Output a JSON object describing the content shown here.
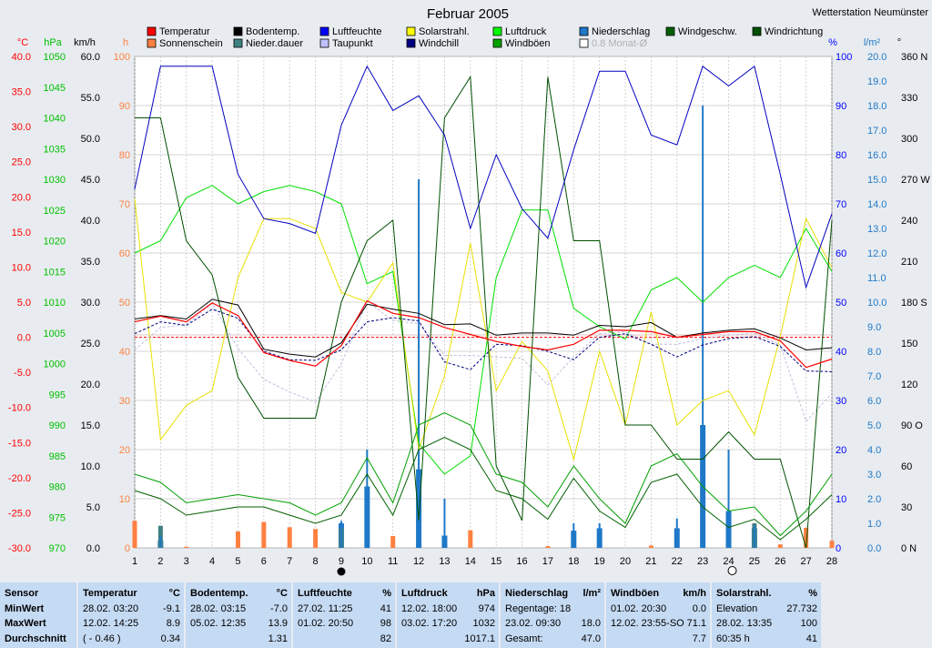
{
  "title": "Februar 2005",
  "station": "Wetterstation Neumünster",
  "legend": [
    {
      "label": "Temperatur",
      "color": "#ff0000"
    },
    {
      "label": "Sonnenschein",
      "color": "#ff8040"
    },
    {
      "label": "Bodentemp.",
      "color": "#000000"
    },
    {
      "label": "Nieder.dauer",
      "color": "#408080"
    },
    {
      "label": "Luftfeuchte",
      "color": "#0000ff"
    },
    {
      "label": "Taupunkt",
      "color": "#c0c0ff"
    },
    {
      "label": "Solarstrahl.",
      "color": "#ffff00"
    },
    {
      "label": "Windchill",
      "color": "#000080"
    },
    {
      "label": "Luftdruck",
      "color": "#00ff00"
    },
    {
      "label": "Windböen",
      "color": "#00a000"
    },
    {
      "label": "Niederschlag",
      "color": "#1e78c8"
    },
    {
      "label": "0.8 Monat-Ø",
      "color": "#ffffff"
    },
    {
      "label": "Windgeschw.",
      "color": "#006000"
    },
    {
      "label": "Windrichtung",
      "color": "#005000"
    }
  ],
  "axes": {
    "temp": {
      "unit": "°C",
      "ticks": [
        "40.0",
        "35.0",
        "30.0",
        "25.0",
        "20.0",
        "15.0",
        "10.0",
        "5.0",
        "0.0",
        "-5.0",
        "-10.0",
        "-15.0",
        "-20.0",
        "-25.0",
        "-30.0"
      ],
      "color": "#ff0000"
    },
    "pressure": {
      "unit": "hPa",
      "ticks": [
        "1050",
        "1045",
        "1040",
        "1035",
        "1030",
        "1025",
        "1020",
        "1015",
        "1010",
        "1005",
        "1000",
        "995",
        "990",
        "985",
        "980",
        "975",
        "970"
      ],
      "color": "#00c000"
    },
    "wind": {
      "unit": "km/h",
      "ticks": [
        "60.0",
        "55.0",
        "50.0",
        "45.0",
        "40.0",
        "35.0",
        "30.0",
        "25.0",
        "20.0",
        "15.0",
        "10.0",
        "5.0",
        "0.0"
      ],
      "color": "#000000"
    },
    "sun": {
      "unit": "h",
      "ticks": [
        "100",
        "90",
        "80",
        "70",
        "60",
        "50",
        "40",
        "30",
        "20",
        "10",
        "0"
      ],
      "color": "#ff8040"
    },
    "humidity": {
      "unit": "%",
      "ticks": [
        "100",
        "90",
        "80",
        "70",
        "60",
        "50",
        "40",
        "30",
        "20",
        "10",
        "0"
      ],
      "color": "#0000ff"
    },
    "precip": {
      "unit": "l/m²",
      "ticks": [
        "20.0",
        "19.0",
        "18.0",
        "17.0",
        "16.0",
        "15.0",
        "14.0",
        "13.0",
        "12.0",
        "11.0",
        "10.0",
        "9.0",
        "8.0",
        "7.0",
        "6.0",
        "5.0",
        "4.0",
        "3.0",
        "2.0",
        "1.0",
        "0.0"
      ],
      "color": "#1e78c8"
    },
    "direction": {
      "unit": "°",
      "ticks": [
        "360 N",
        "330",
        "300",
        "270 W",
        "240",
        "210",
        "180 S",
        "150",
        "120",
        "90 O",
        "60",
        "30",
        "0 N"
      ],
      "color": "#000000"
    },
    "x_ticks": [
      "1",
      "2",
      "3",
      "4",
      "5",
      "6",
      "7",
      "8",
      "9",
      "10",
      "11",
      "12",
      "13",
      "14",
      "15",
      "16",
      "17",
      "18",
      "19",
      "20",
      "21",
      "22",
      "23",
      "24",
      "25",
      "26",
      "27",
      "28"
    ]
  },
  "chart_data": {
    "type": "line",
    "x": [
      1,
      2,
      3,
      4,
      5,
      6,
      7,
      8,
      9,
      10,
      11,
      12,
      13,
      14,
      15,
      16,
      17,
      18,
      19,
      20,
      21,
      22,
      23,
      24,
      25,
      26,
      27,
      28
    ],
    "moon_days": [
      9,
      24
    ],
    "series": [
      {
        "name": "Temperatur",
        "unit": "°C",
        "color": "#ff0000",
        "values": [
          2.2,
          3.0,
          2.2,
          4.9,
          3.1,
          -2.2,
          -3.3,
          -4.1,
          -1.2,
          5.2,
          3.4,
          2.8,
          1.4,
          0.4,
          -0.6,
          -1.3,
          -1.8,
          -1.0,
          1.0,
          1.0,
          0.8,
          0.0,
          0.4,
          0.8,
          0.8,
          -0.5,
          -4.3,
          -3.1
        ]
      },
      {
        "name": "Bodentemp.",
        "unit": "°C",
        "color": "#000000",
        "values": [
          2.6,
          3.1,
          2.6,
          5.4,
          4.6,
          -1.7,
          -2.4,
          -2.8,
          -0.8,
          4.7,
          4.0,
          3.4,
          1.8,
          1.9,
          0.3,
          0.6,
          0.6,
          0.3,
          1.7,
          1.5,
          2.1,
          0.0,
          0.6,
          1.0,
          1.2,
          -0.1,
          -1.8,
          -1.5
        ]
      },
      {
        "name": "Windchill",
        "unit": "°C",
        "color": "#000080",
        "values": [
          0.5,
          2.2,
          1.7,
          4.0,
          2.7,
          -2.0,
          -3.2,
          -3.3,
          -1.8,
          2.2,
          2.8,
          2.3,
          -3.5,
          -4.6,
          -1.0,
          -1.2,
          -2.0,
          -3.2,
          0.0,
          0.5,
          -1.0,
          -2.8,
          -1.1,
          -0.2,
          0.1,
          -1.3,
          -4.8,
          -4.9
        ]
      },
      {
        "name": "Taupunkt",
        "unit": "°C",
        "color": "#c0c0ff",
        "values": [
          -1.8,
          1.4,
          1.8,
          4.8,
          -1.6,
          -6.0,
          -7.8,
          -9.2,
          -3.8,
          5.1,
          2.4,
          1.9,
          -2.6,
          -2.6,
          -2.8,
          -3.0,
          -6.8,
          -2.8,
          0.5,
          0.8,
          -1.0,
          -1.0,
          -0.2,
          0.3,
          0.6,
          -1.1,
          -12.0,
          -8.0
        ]
      },
      {
        "name": "Luftfeuchte",
        "unit": "%",
        "color": "#0000ff",
        "values": [
          73,
          98,
          98,
          98,
          76,
          67,
          66,
          64,
          86,
          98,
          89,
          92,
          84,
          65,
          80,
          69,
          63,
          81,
          97,
          97,
          84,
          82,
          98,
          94,
          98,
          76,
          53,
          68
        ]
      },
      {
        "name": "Luftdruck",
        "unit": "hPa",
        "color": "#00ff00",
        "values": [
          1018,
          1020,
          1027,
          1029,
          1026,
          1028,
          1029,
          1028,
          1026,
          1013,
          1015,
          987,
          982,
          985,
          1014,
          1025,
          1025,
          1009,
          1006,
          1004,
          1012,
          1014,
          1010,
          1014,
          1016,
          1014,
          1022,
          1015
        ]
      },
      {
        "name": "Solarstrahl.",
        "unit": "%",
        "color": "#ffff00",
        "values": [
          71,
          22,
          29,
          32,
          55,
          67,
          67,
          65,
          52,
          50,
          58,
          20,
          35,
          62,
          32,
          42,
          36,
          18,
          40,
          25,
          48,
          25,
          30,
          32,
          23,
          43,
          67,
          57
        ]
      },
      {
        "name": "Windböen",
        "unit": "km/h",
        "color": "#00a000",
        "values": [
          9.0,
          8.0,
          5.5,
          6.0,
          6.5,
          6.0,
          5.5,
          4.0,
          5.5,
          11.0,
          5.5,
          15.0,
          16.5,
          15.0,
          9.0,
          8.0,
          5.0,
          10.0,
          6.0,
          3.0,
          10.0,
          11.5,
          7.5,
          4.5,
          5.0,
          1.5,
          4.5,
          9.0
        ]
      },
      {
        "name": "Windgeschw.",
        "unit": "km/h",
        "color": "#006000",
        "values": [
          7.0,
          6.0,
          4.0,
          4.5,
          5.0,
          5.0,
          4.0,
          3.0,
          4.0,
          9.0,
          4.0,
          12.0,
          13.5,
          12.0,
          7.0,
          6.0,
          3.5,
          8.5,
          4.5,
          2.5,
          8.0,
          9.0,
          5.0,
          2.5,
          3.5,
          1.0,
          3.5,
          6.5
        ]
      },
      {
        "name": "Windrichtung",
        "unit": "°",
        "color": "#005000",
        "values": [
          315,
          315,
          225,
          200,
          125,
          95,
          95,
          95,
          180,
          225,
          240,
          20,
          315,
          345,
          60,
          20,
          345,
          225,
          225,
          90,
          90,
          65,
          65,
          85,
          65,
          65,
          0,
          240
        ]
      },
      {
        "name": "Sonnenschein",
        "unit": "h",
        "color": "#ff8040",
        "values": [
          4.6,
          0,
          0.2,
          0,
          2.8,
          4.4,
          3.5,
          3.2,
          2.1,
          0,
          2.0,
          0,
          0,
          3.0,
          0,
          0,
          0.3,
          0,
          0,
          0,
          0.4,
          0,
          0,
          0,
          0,
          0.6,
          3.4,
          1.2
        ]
      },
      {
        "name": "Nieder.dauer",
        "unit": "h",
        "color": "#408080",
        "values": [
          0,
          0.9,
          0,
          0,
          0,
          0,
          0,
          0,
          0.8,
          0,
          0,
          0,
          0,
          0,
          0,
          0,
          0,
          0,
          0,
          0,
          0,
          0,
          0,
          0,
          1.0,
          0,
          0,
          0
        ]
      },
      {
        "name": "Niederschlag",
        "unit": "l/m²",
        "color": "#1e78c8",
        "values": [
          0,
          0.3,
          0,
          0,
          0,
          0,
          0,
          0,
          1.0,
          2.5,
          0,
          3.2,
          0.5,
          0,
          0,
          0,
          0,
          0.7,
          0.8,
          0,
          0,
          0.8,
          5.0,
          1.5,
          0.8,
          0,
          0,
          0
        ]
      }
    ],
    "precip_spikes": [
      {
        "day": 2,
        "max": 0.5
      },
      {
        "day": 9,
        "max": 1.1
      },
      {
        "day": 10,
        "max": 4.0
      },
      {
        "day": 12,
        "max": 15.0
      },
      {
        "day": 13,
        "max": 2.0
      },
      {
        "day": 18,
        "max": 1.0
      },
      {
        "day": 19,
        "max": 1.0
      },
      {
        "day": 22,
        "max": 1.2
      },
      {
        "day": 23,
        "max": 18.0
      },
      {
        "day": 24,
        "max": 4.0
      },
      {
        "day": 25,
        "max": 0.9
      }
    ],
    "month_avg_temp": 0.34,
    "month_avg_temp_label": "0.8 Monat-Ø"
  },
  "table": {
    "sensor": {
      "head": "Sensor",
      "rows": [
        "MinWert",
        "MaxWert",
        "Durchschnitt"
      ]
    },
    "columns": [
      {
        "head": "Temperatur",
        "unit": "°C",
        "rows": [
          [
            "28.02.  03:20",
            "-9.1"
          ],
          [
            "12.02.  14:25",
            "8.9"
          ],
          [
            "( - 0.46 )",
            "0.34"
          ]
        ]
      },
      {
        "head": "Bodentemp.",
        "unit": "°C",
        "rows": [
          [
            "28.02.  03:15",
            "-7.0"
          ],
          [
            "05.02.  12:35",
            "13.9"
          ],
          [
            "",
            "1.31"
          ]
        ]
      },
      {
        "head": "Luftfeuchte",
        "unit": "%",
        "rows": [
          [
            "27.02.  11:25",
            "41"
          ],
          [
            "01.02.  20:50",
            "98"
          ],
          [
            "",
            "82"
          ]
        ]
      },
      {
        "head": "Luftdruck",
        "unit": "hPa",
        "rows": [
          [
            "12.02.  18:00",
            "974"
          ],
          [
            "03.02.  17:20",
            "1032"
          ],
          [
            "",
            "1017.1"
          ]
        ]
      },
      {
        "head": "Niederschlag",
        "unit": "l/m²",
        "rows": [
          [
            "Regentage: 18",
            ""
          ],
          [
            "23.02.  09:30",
            "18.0"
          ],
          [
            "Gesamt:",
            "47.0"
          ]
        ]
      },
      {
        "head": "Windböen",
        "unit": "km/h",
        "rows": [
          [
            "01.02.  20:30",
            "0.0"
          ],
          [
            "12.02.  23:55-SO",
            "71.1"
          ],
          [
            "",
            "7.7"
          ]
        ]
      },
      {
        "head": "Solarstrahl.",
        "unit": "%",
        "rows": [
          [
            "Elevation",
            "27.732"
          ],
          [
            "28.02.  13:35",
            "100"
          ],
          [
            "60:35 h",
            "41"
          ]
        ]
      }
    ]
  }
}
